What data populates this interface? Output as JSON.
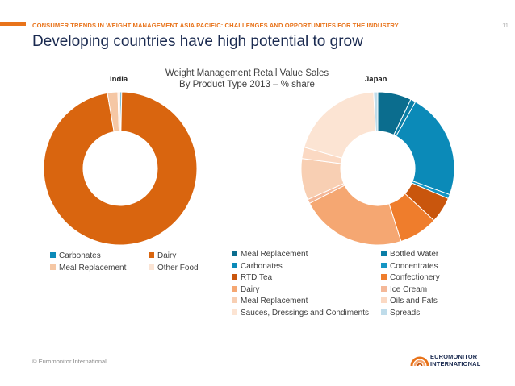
{
  "header": {
    "section": "CONSUMER TRENDS IN WEIGHT MANAGEMENT ASIA PACIFIC: CHALLENGES AND OPPORTUNITIES FOR THE INDUSTRY",
    "page_number": "11"
  },
  "title": "Developing countries have high potential to grow",
  "chart_title_line1": "Weight Management Retail Value Sales",
  "chart_title_line2": "By Product Type 2013 – % share",
  "footer": {
    "copyright": "© Euromonitor International"
  },
  "logo": {
    "line1": "EUROMONITOR",
    "line2": "INTERNATIONAL"
  },
  "chart_data": [
    {
      "type": "pie",
      "title": "India",
      "legend_placement": "bottom",
      "categories": [
        "Carbonates",
        "Dairy",
        "Meal Replacement",
        "Other Food"
      ],
      "colors": [
        "#0b8ab8",
        "#d9650f",
        "#f5c7a4",
        "#fbe4d4"
      ],
      "values": [
        0.3,
        97.0,
        2.2,
        0.5
      ]
    },
    {
      "type": "pie",
      "title": "Japan",
      "legend_placement": "bottom",
      "categories": [
        "Meal Replacement",
        "Bottled Water",
        "Carbonates",
        "Concentrates",
        "RTD Tea",
        "Confectionery",
        "Dairy",
        "Ice Cream",
        "Meal Replacement",
        "Oils and Fats",
        "Sauces, Dressings and Condiments",
        "Spreads"
      ],
      "colors": [
        "#0b6d8e",
        "#0b7ea6",
        "#0b8ab8",
        "#1596c4",
        "#c9560d",
        "#ef7d2c",
        "#f5a772",
        "#f4b898",
        "#f8cfb3",
        "#fbd9c3",
        "#fce4d3",
        "#bfdcea"
      ],
      "values": [
        6.5,
        1.0,
        20.5,
        0.8,
        5.0,
        7.5,
        20.5,
        0.8,
        8.0,
        2.2,
        18.0,
        0.8
      ]
    }
  ]
}
